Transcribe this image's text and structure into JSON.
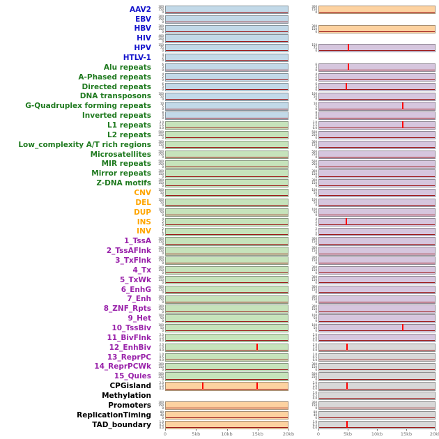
{
  "chart_data": {
    "type": "line",
    "description": "Per-track genomic feature occurrence profiles around two loci; red vertical spikes mark feature hits on a dark-red zero baseline; panel background color encodes track group",
    "columns": 2,
    "x_ticks": [
      "0",
      "5kb",
      "10kb",
      "15kb",
      "20kb"
    ],
    "x_range_kb": [
      0,
      20
    ],
    "tracks": [
      {
        "label": "AAV2",
        "cat": "v",
        "yt": [
          "300",
          "150",
          "0"
        ],
        "l": {
          "bg": "blue",
          "s": []
        },
        "r": {
          "bg": "orange",
          "s": []
        }
      },
      {
        "label": "EBV",
        "cat": "v",
        "yt": [
          "300",
          "150",
          "0"
        ],
        "l": {
          "bg": "blue",
          "s": []
        },
        "r": {
          "bg": null,
          "s": []
        }
      },
      {
        "label": "HBV",
        "cat": "v",
        "yt": [
          "300",
          "150",
          "0"
        ],
        "l": {
          "bg": "blue",
          "s": []
        },
        "r": {
          "bg": "orange",
          "s": []
        }
      },
      {
        "label": "HIV",
        "cat": "v",
        "yt": [
          "400",
          "200",
          "0"
        ],
        "l": {
          "bg": "blue",
          "s": []
        },
        "r": {
          "bg": null,
          "s": []
        }
      },
      {
        "label": "HPV",
        "cat": "v",
        "yt": [
          "150",
          "75",
          "0"
        ],
        "l": {
          "bg": "blue",
          "s": []
        },
        "r": {
          "bg": "purple",
          "s": [
            5
          ]
        }
      },
      {
        "label": "HTLV-1",
        "cat": "v",
        "yt": [
          "4",
          "2",
          "0"
        ],
        "l": {
          "bg": "blue",
          "s": []
        },
        "r": {
          "bg": null,
          "s": []
        }
      },
      {
        "label": "Alu repeats",
        "cat": "r",
        "yt": [
          "6",
          "3",
          "0"
        ],
        "l": {
          "bg": "blue",
          "s": []
        },
        "r": {
          "bg": "purple",
          "s": [
            5
          ]
        }
      },
      {
        "label": "A-Phased repeats",
        "cat": "r",
        "yt": [
          "4",
          "2",
          "0"
        ],
        "l": {
          "bg": "blue",
          "s": []
        },
        "r": {
          "bg": "purple",
          "s": []
        }
      },
      {
        "label": "Directed repeats",
        "cat": "r",
        "yt": [
          "6",
          "3",
          "0"
        ],
        "l": {
          "bg": "blue",
          "s": []
        },
        "r": {
          "bg": "purple",
          "s": [
            4.7
          ]
        }
      },
      {
        "label": "DNA transposons",
        "cat": "r",
        "yt": [
          "100",
          "50",
          "0"
        ],
        "l": {
          "bg": "blue",
          "s": []
        },
        "r": {
          "bg": "purple",
          "s": []
        }
      },
      {
        "label": "G-Quadruplex forming repeats",
        "cat": "r",
        "yt": [
          "10",
          "5",
          "0"
        ],
        "l": {
          "bg": "blue",
          "s": []
        },
        "r": {
          "bg": "purple",
          "s": [
            14.5
          ]
        }
      },
      {
        "label": "Inverted repeats",
        "cat": "r",
        "yt": [
          "8",
          "4",
          "0"
        ],
        "l": {
          "bg": "blue",
          "s": []
        },
        "r": {
          "bg": "purple",
          "s": []
        }
      },
      {
        "label": "L1 repeats",
        "cat": "r",
        "yt": [
          "3.0",
          "1.5",
          "0.0"
        ],
        "l": {
          "bg": "green",
          "s": []
        },
        "r": {
          "bg": "purple",
          "s": [
            14.5
          ]
        }
      },
      {
        "label": "L2 repeats",
        "cat": "r",
        "yt": [
          "500",
          "250",
          "0"
        ],
        "l": {
          "bg": "green",
          "s": []
        },
        "r": {
          "bg": "purple",
          "s": []
        }
      },
      {
        "label": "Low_complexity A/T rich regions",
        "cat": "r",
        "yt": [
          "300",
          "150",
          "0"
        ],
        "l": {
          "bg": "green",
          "s": []
        },
        "r": {
          "bg": "purple",
          "s": []
        }
      },
      {
        "label": "Microsatellites",
        "cat": "r",
        "yt": [
          "500",
          "250",
          "0"
        ],
        "l": {
          "bg": "green",
          "s": []
        },
        "r": {
          "bg": "purple",
          "s": []
        }
      },
      {
        "label": "MIR repeats",
        "cat": "r",
        "yt": [
          "500",
          "250",
          "0"
        ],
        "l": {
          "bg": "green",
          "s": []
        },
        "r": {
          "bg": "purple",
          "s": []
        }
      },
      {
        "label": "Mirror repeats",
        "cat": "r",
        "yt": [
          "300",
          "150",
          "0"
        ],
        "l": {
          "bg": "green",
          "s": []
        },
        "r": {
          "bg": "purple",
          "s": []
        }
      },
      {
        "label": "Z-DNA motifs",
        "cat": "r",
        "yt": [
          "300",
          "150",
          "0"
        ],
        "l": {
          "bg": "green",
          "s": []
        },
        "r": {
          "bg": "purple",
          "s": []
        }
      },
      {
        "label": "CNV",
        "cat": "s",
        "yt": [
          "100",
          "50",
          "0"
        ],
        "l": {
          "bg": "green",
          "s": []
        },
        "r": {
          "bg": "purple",
          "s": []
        }
      },
      {
        "label": "DEL",
        "cat": "s",
        "yt": [
          "100",
          "50",
          "0"
        ],
        "l": {
          "bg": "green",
          "s": []
        },
        "r": {
          "bg": "purple",
          "s": []
        }
      },
      {
        "label": "DUP",
        "cat": "s",
        "yt": [
          "100",
          "50",
          "0"
        ],
        "l": {
          "bg": "green",
          "s": []
        },
        "r": {
          "bg": "purple",
          "s": []
        }
      },
      {
        "label": "INS",
        "cat": "s",
        "yt": [
          "4",
          "2",
          "0"
        ],
        "l": {
          "bg": "green",
          "s": []
        },
        "r": {
          "bg": "purple",
          "s": [
            4.7
          ]
        }
      },
      {
        "label": "INV",
        "cat": "s",
        "yt": [
          "2",
          "1",
          "0"
        ],
        "l": {
          "bg": "green",
          "s": []
        },
        "r": {
          "bg": "purple",
          "s": []
        }
      },
      {
        "label": "1_TssA",
        "cat": "c",
        "yt": [
          "300",
          "150",
          "0"
        ],
        "l": {
          "bg": "green",
          "s": []
        },
        "r": {
          "bg": "purple",
          "s": []
        }
      },
      {
        "label": "2_TssAFlnk",
        "cat": "c",
        "yt": [
          "300",
          "150",
          "0"
        ],
        "l": {
          "bg": "green",
          "s": []
        },
        "r": {
          "bg": "purple",
          "s": []
        }
      },
      {
        "label": "3_TxFlnk",
        "cat": "c",
        "yt": [
          "300",
          "150",
          "0"
        ],
        "l": {
          "bg": "green",
          "s": []
        },
        "r": {
          "bg": "purple",
          "s": []
        }
      },
      {
        "label": "4_Tx",
        "cat": "c",
        "yt": [
          "300",
          "150",
          "0"
        ],
        "l": {
          "bg": "green",
          "s": []
        },
        "r": {
          "bg": "purple",
          "s": []
        }
      },
      {
        "label": "5_TxWk",
        "cat": "c",
        "yt": [
          "300",
          "150",
          "0"
        ],
        "l": {
          "bg": "green",
          "s": []
        },
        "r": {
          "bg": "purple",
          "s": []
        }
      },
      {
        "label": "6_EnhG",
        "cat": "c",
        "yt": [
          "300",
          "150",
          "0"
        ],
        "l": {
          "bg": "green",
          "s": []
        },
        "r": {
          "bg": "purple",
          "s": []
        }
      },
      {
        "label": "7_Enh",
        "cat": "c",
        "yt": [
          "300",
          "150",
          "0"
        ],
        "l": {
          "bg": "green",
          "s": []
        },
        "r": {
          "bg": "purple",
          "s": []
        }
      },
      {
        "label": "8_ZNF_Rpts",
        "cat": "c",
        "yt": [
          "300",
          "150",
          "0"
        ],
        "l": {
          "bg": "green",
          "s": []
        },
        "r": {
          "bg": "purple",
          "s": []
        }
      },
      {
        "label": "9_Het",
        "cat": "c",
        "yt": [
          "100",
          "50",
          "0"
        ],
        "l": {
          "bg": "green",
          "s": []
        },
        "r": {
          "bg": "purple",
          "s": []
        }
      },
      {
        "label": "10_TssBiv",
        "cat": "c",
        "yt": [
          "100",
          "50",
          "0"
        ],
        "l": {
          "bg": "green",
          "s": []
        },
        "r": {
          "bg": "purple",
          "s": [
            14.5
          ]
        }
      },
      {
        "label": "11_BivFlnk",
        "cat": "c",
        "yt": [
          "2.0",
          "1.0",
          "0.0"
        ],
        "l": {
          "bg": "green",
          "s": []
        },
        "r": {
          "bg": "purple",
          "s": []
        }
      },
      {
        "label": "12_EnhBiv",
        "cat": "c",
        "yt": [
          "2.0",
          "1.0",
          "0.0"
        ],
        "l": {
          "bg": "green",
          "s": [
            15
          ]
        },
        "r": {
          "bg": "gray",
          "s": [
            4.8
          ]
        }
      },
      {
        "label": "13_ReprPC",
        "cat": "c",
        "yt": [
          "1.0",
          "0.5",
          "0.0"
        ],
        "l": {
          "bg": "green",
          "s": []
        },
        "r": {
          "bg": "gray",
          "s": []
        }
      },
      {
        "label": "14_ReprPCWk",
        "cat": "c",
        "yt": [
          "300",
          "150",
          "0"
        ],
        "l": {
          "bg": "green",
          "s": []
        },
        "r": {
          "bg": "gray",
          "s": []
        }
      },
      {
        "label": "15_Quies",
        "cat": "c",
        "yt": [
          "500",
          "250",
          "0"
        ],
        "l": {
          "bg": "green",
          "s": []
        },
        "r": {
          "bg": "gray",
          "s": []
        }
      },
      {
        "label": "CPGisland",
        "cat": "o",
        "yt": [
          "2.0",
          "1.0",
          "0.0"
        ],
        "l": {
          "bg": "orange",
          "s": [
            6,
            15
          ]
        },
        "r": {
          "bg": "gray",
          "s": [
            4.8
          ]
        }
      },
      {
        "label": "Methylation",
        "cat": "o",
        "yt": [
          "1.0",
          "0.5",
          "0.0"
        ],
        "l": {
          "bg": null,
          "s": []
        },
        "r": {
          "bg": "gray",
          "s": []
        }
      },
      {
        "label": "Promoters",
        "cat": "o",
        "yt": [
          "300",
          "150",
          "0"
        ],
        "l": {
          "bg": "orange",
          "s": []
        },
        "r": {
          "bg": "gray",
          "s": []
        }
      },
      {
        "label": "ReplicationTiming",
        "cat": "o",
        "yt": [
          "80",
          "40",
          "0"
        ],
        "l": {
          "bg": "orange",
          "s": []
        },
        "r": {
          "bg": "gray",
          "s": []
        }
      },
      {
        "label": "TAD_boundary",
        "cat": "o",
        "yt": [
          "1.0",
          "0.5",
          "0.0"
        ],
        "l": {
          "bg": "orange",
          "s": []
        },
        "r": {
          "bg": "gray",
          "s": [
            4.8
          ]
        }
      }
    ]
  },
  "colors": {
    "category": {
      "v": "#1414cc",
      "r": "#1f7a1f",
      "s": "#ffa500",
      "c": "#9922aa",
      "o": "#000000"
    },
    "bg": {
      "blue": "#c2d9e8",
      "green": "#c6e3bb",
      "orange": "#fdd2a0",
      "purple": "#d6c6de",
      "gray": "#d8d8d8"
    },
    "spike": "#ff0000",
    "baseline": "#9e1a1a"
  }
}
